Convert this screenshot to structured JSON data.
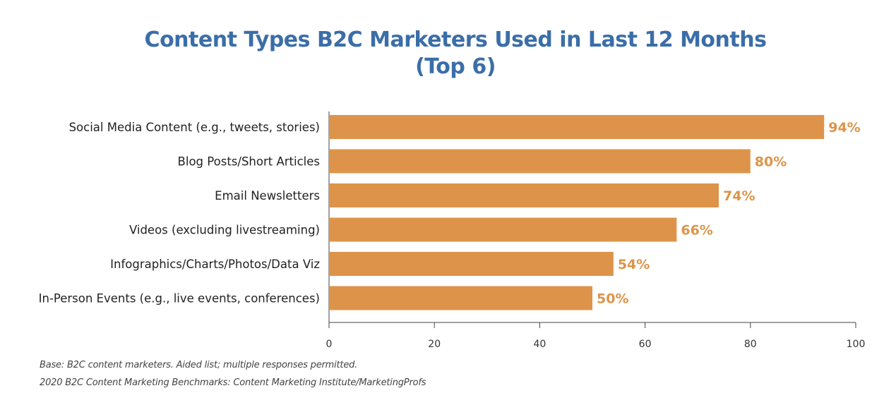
{
  "chart_data": {
    "type": "bar",
    "orientation": "horizontal",
    "title_lines": [
      "Content Types B2C Marketers Used in Last 12 Months",
      "(Top 6)"
    ],
    "categories": [
      "Social Media Content (e.g., tweets, stories)",
      "Blog Posts/Short Articles",
      "Email Newsletters",
      "Videos (excluding livestreaming)",
      "Infographics/Charts/Photos/Data Viz",
      "In-Person Events (e.g., live events, conferences)"
    ],
    "values": [
      94,
      80,
      74,
      66,
      54,
      50
    ],
    "value_labels": [
      "94%",
      "80%",
      "74%",
      "66%",
      "54%",
      "50%"
    ],
    "xlim": [
      0,
      100
    ],
    "xticks": [
      0,
      20,
      40,
      60,
      80,
      100
    ],
    "grid": false,
    "colors": {
      "bar": "#dd944a",
      "value_label": "#dd944a",
      "title": "#3b6ea8"
    }
  },
  "footnotes": [
    "Base: B2C content marketers. Aided list; multiple responses permitted.",
    "2020 B2C Content Marketing Benchmarks: Content Marketing Institute/MarketingProfs"
  ]
}
